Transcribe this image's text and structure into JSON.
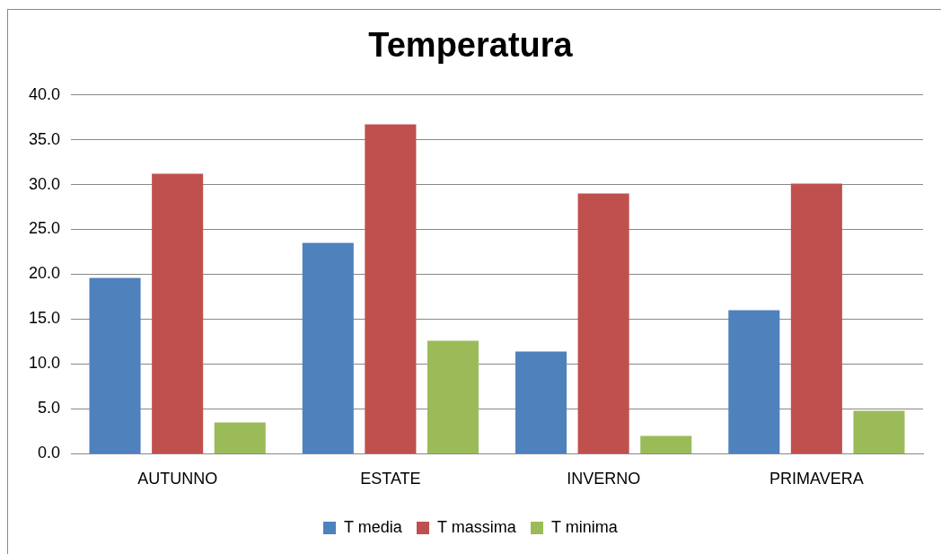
{
  "chart_data": {
    "type": "bar",
    "title": "Temperatura",
    "categories": [
      "AUTUNNO",
      "ESTATE",
      "INVERNO",
      "PRIMAVERA"
    ],
    "series": [
      {
        "name": "T media",
        "color": "#4f81bd",
        "values": [
          19.6,
          23.5,
          11.4,
          16.0
        ]
      },
      {
        "name": "T massima",
        "color": "#c0504d",
        "values": [
          31.2,
          36.7,
          29.0,
          30.1
        ]
      },
      {
        "name": "T minima",
        "color": "#9bbb59",
        "values": [
          3.5,
          12.6,
          2.0,
          4.8
        ]
      }
    ],
    "ylim": [
      0,
      40
    ],
    "yticks": [
      {
        "value": 0,
        "label": "0.0"
      },
      {
        "value": 5,
        "label": "5.0"
      },
      {
        "value": 10,
        "label": "10.0"
      },
      {
        "value": 15,
        "label": "15.0"
      },
      {
        "value": 20,
        "label": "20.0"
      },
      {
        "value": 25,
        "label": "25.0"
      },
      {
        "value": 30,
        "label": "30.0"
      },
      {
        "value": 35,
        "label": "35.0"
      },
      {
        "value": 40,
        "label": "40.0"
      }
    ],
    "grid": "y",
    "legend": "bottom"
  }
}
